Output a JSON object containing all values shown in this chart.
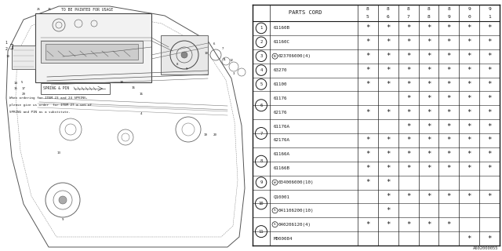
{
  "footer": "A602000055",
  "bg_color": "#ffffff",
  "line_color": "#1a1a1a",
  "text_color": "#1a1a1a",
  "year_cols": [
    "85",
    "86",
    "87",
    "88",
    "89",
    "90",
    "91"
  ],
  "rows": [
    {
      "item": "1",
      "prefix": "",
      "part": "61160B",
      "stars": [
        1,
        1,
        1,
        1,
        1,
        1,
        1
      ]
    },
    {
      "item": "2",
      "prefix": "",
      "part": "61160C",
      "stars": [
        1,
        1,
        1,
        1,
        1,
        1,
        1
      ]
    },
    {
      "item": "3",
      "prefix": "N",
      "part": "023706000(4)",
      "stars": [
        1,
        1,
        1,
        1,
        1,
        1,
        1
      ]
    },
    {
      "item": "4",
      "prefix": "",
      "part": "63270",
      "stars": [
        1,
        1,
        1,
        1,
        1,
        1,
        1
      ]
    },
    {
      "item": "5",
      "prefix": "",
      "part": "61100",
      "stars": [
        1,
        1,
        1,
        1,
        1,
        1,
        1
      ]
    },
    {
      "item": "6",
      "prefix": "",
      "part": "61176",
      "stars": [
        0,
        0,
        1,
        1,
        1,
        1,
        1
      ]
    },
    {
      "item": "6",
      "prefix": "",
      "part": "62176",
      "stars": [
        1,
        1,
        1,
        1,
        1,
        1,
        1
      ]
    },
    {
      "item": "7",
      "prefix": "",
      "part": "61176A",
      "stars": [
        0,
        0,
        1,
        1,
        1,
        1,
        1
      ]
    },
    {
      "item": "7",
      "prefix": "",
      "part": "62176A",
      "stars": [
        1,
        1,
        1,
        1,
        1,
        1,
        1
      ]
    },
    {
      "item": "8",
      "prefix": "",
      "part": "61166A",
      "stars": [
        1,
        1,
        1,
        1,
        1,
        1,
        1
      ]
    },
    {
      "item": "8",
      "prefix": "",
      "part": "61166B",
      "stars": [
        1,
        1,
        1,
        1,
        1,
        1,
        1
      ]
    },
    {
      "item": "9",
      "prefix": "W",
      "part": "034006000(10)",
      "stars": [
        1,
        1,
        0,
        0,
        0,
        0,
        0
      ]
    },
    {
      "item": "10",
      "prefix": "",
      "part": "Q10001",
      "stars": [
        0,
        1,
        1,
        1,
        1,
        1,
        1
      ]
    },
    {
      "item": "10",
      "prefix": "S",
      "part": "041106200(10)",
      "stars": [
        0,
        1,
        0,
        0,
        0,
        0,
        0
      ]
    },
    {
      "item": "11",
      "prefix": "S",
      "part": "040206120(4)",
      "stars": [
        1,
        1,
        1,
        1,
        1,
        0,
        0
      ]
    },
    {
      "item": "11",
      "prefix": "",
      "part": "M000084",
      "stars": [
        0,
        0,
        0,
        0,
        0,
        1,
        1
      ]
    }
  ],
  "item_groups": {
    "1": [
      0
    ],
    "2": [
      1
    ],
    "3": [
      2
    ],
    "4": [
      3
    ],
    "5": [
      4
    ],
    "6": [
      5,
      6
    ],
    "7": [
      7,
      8
    ],
    "8": [
      9,
      10
    ],
    "9": [
      11
    ],
    "10": [
      12,
      13
    ],
    "11": [
      14,
      15
    ]
  }
}
